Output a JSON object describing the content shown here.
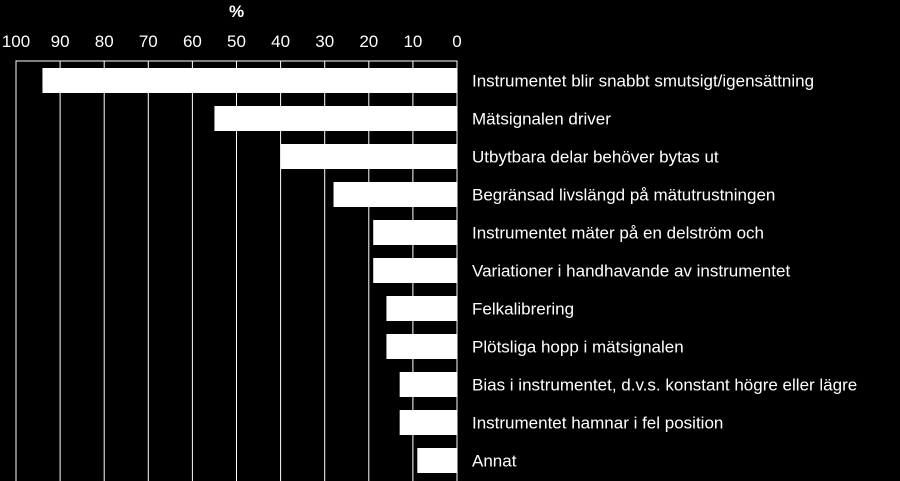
{
  "chart_data": {
    "type": "bar",
    "orientation": "horizontal",
    "x_axis_reversed": true,
    "title": "",
    "unit_label": "%",
    "xlim": [
      0,
      100
    ],
    "x_ticks": [
      100,
      90,
      80,
      70,
      60,
      50,
      40,
      30,
      20,
      10,
      0
    ],
    "grid": true,
    "categories": [
      "Instrumentet blir snabbt smutsigt/igensättning",
      "Mätsignalen driver",
      "Utbytbara delar behöver bytas ut",
      "Begränsad livslängd på mätutrustningen",
      "Instrumentet mäter på en delström och",
      "Variationer i handhavande av instrumentet",
      "Felkalibrering",
      "Plötsliga hopp i mätsignalen",
      "Bias i instrumentet, d.v.s. konstant högre eller lägre",
      "Instrumentet hamnar i fel position",
      "Annat"
    ],
    "values": [
      94,
      55,
      40,
      28,
      19,
      19,
      16,
      16,
      13,
      13,
      9
    ],
    "colors": {
      "background": "#000000",
      "bar": "#ffffff",
      "grid": "#ffffff",
      "text": "#ffffff"
    }
  }
}
